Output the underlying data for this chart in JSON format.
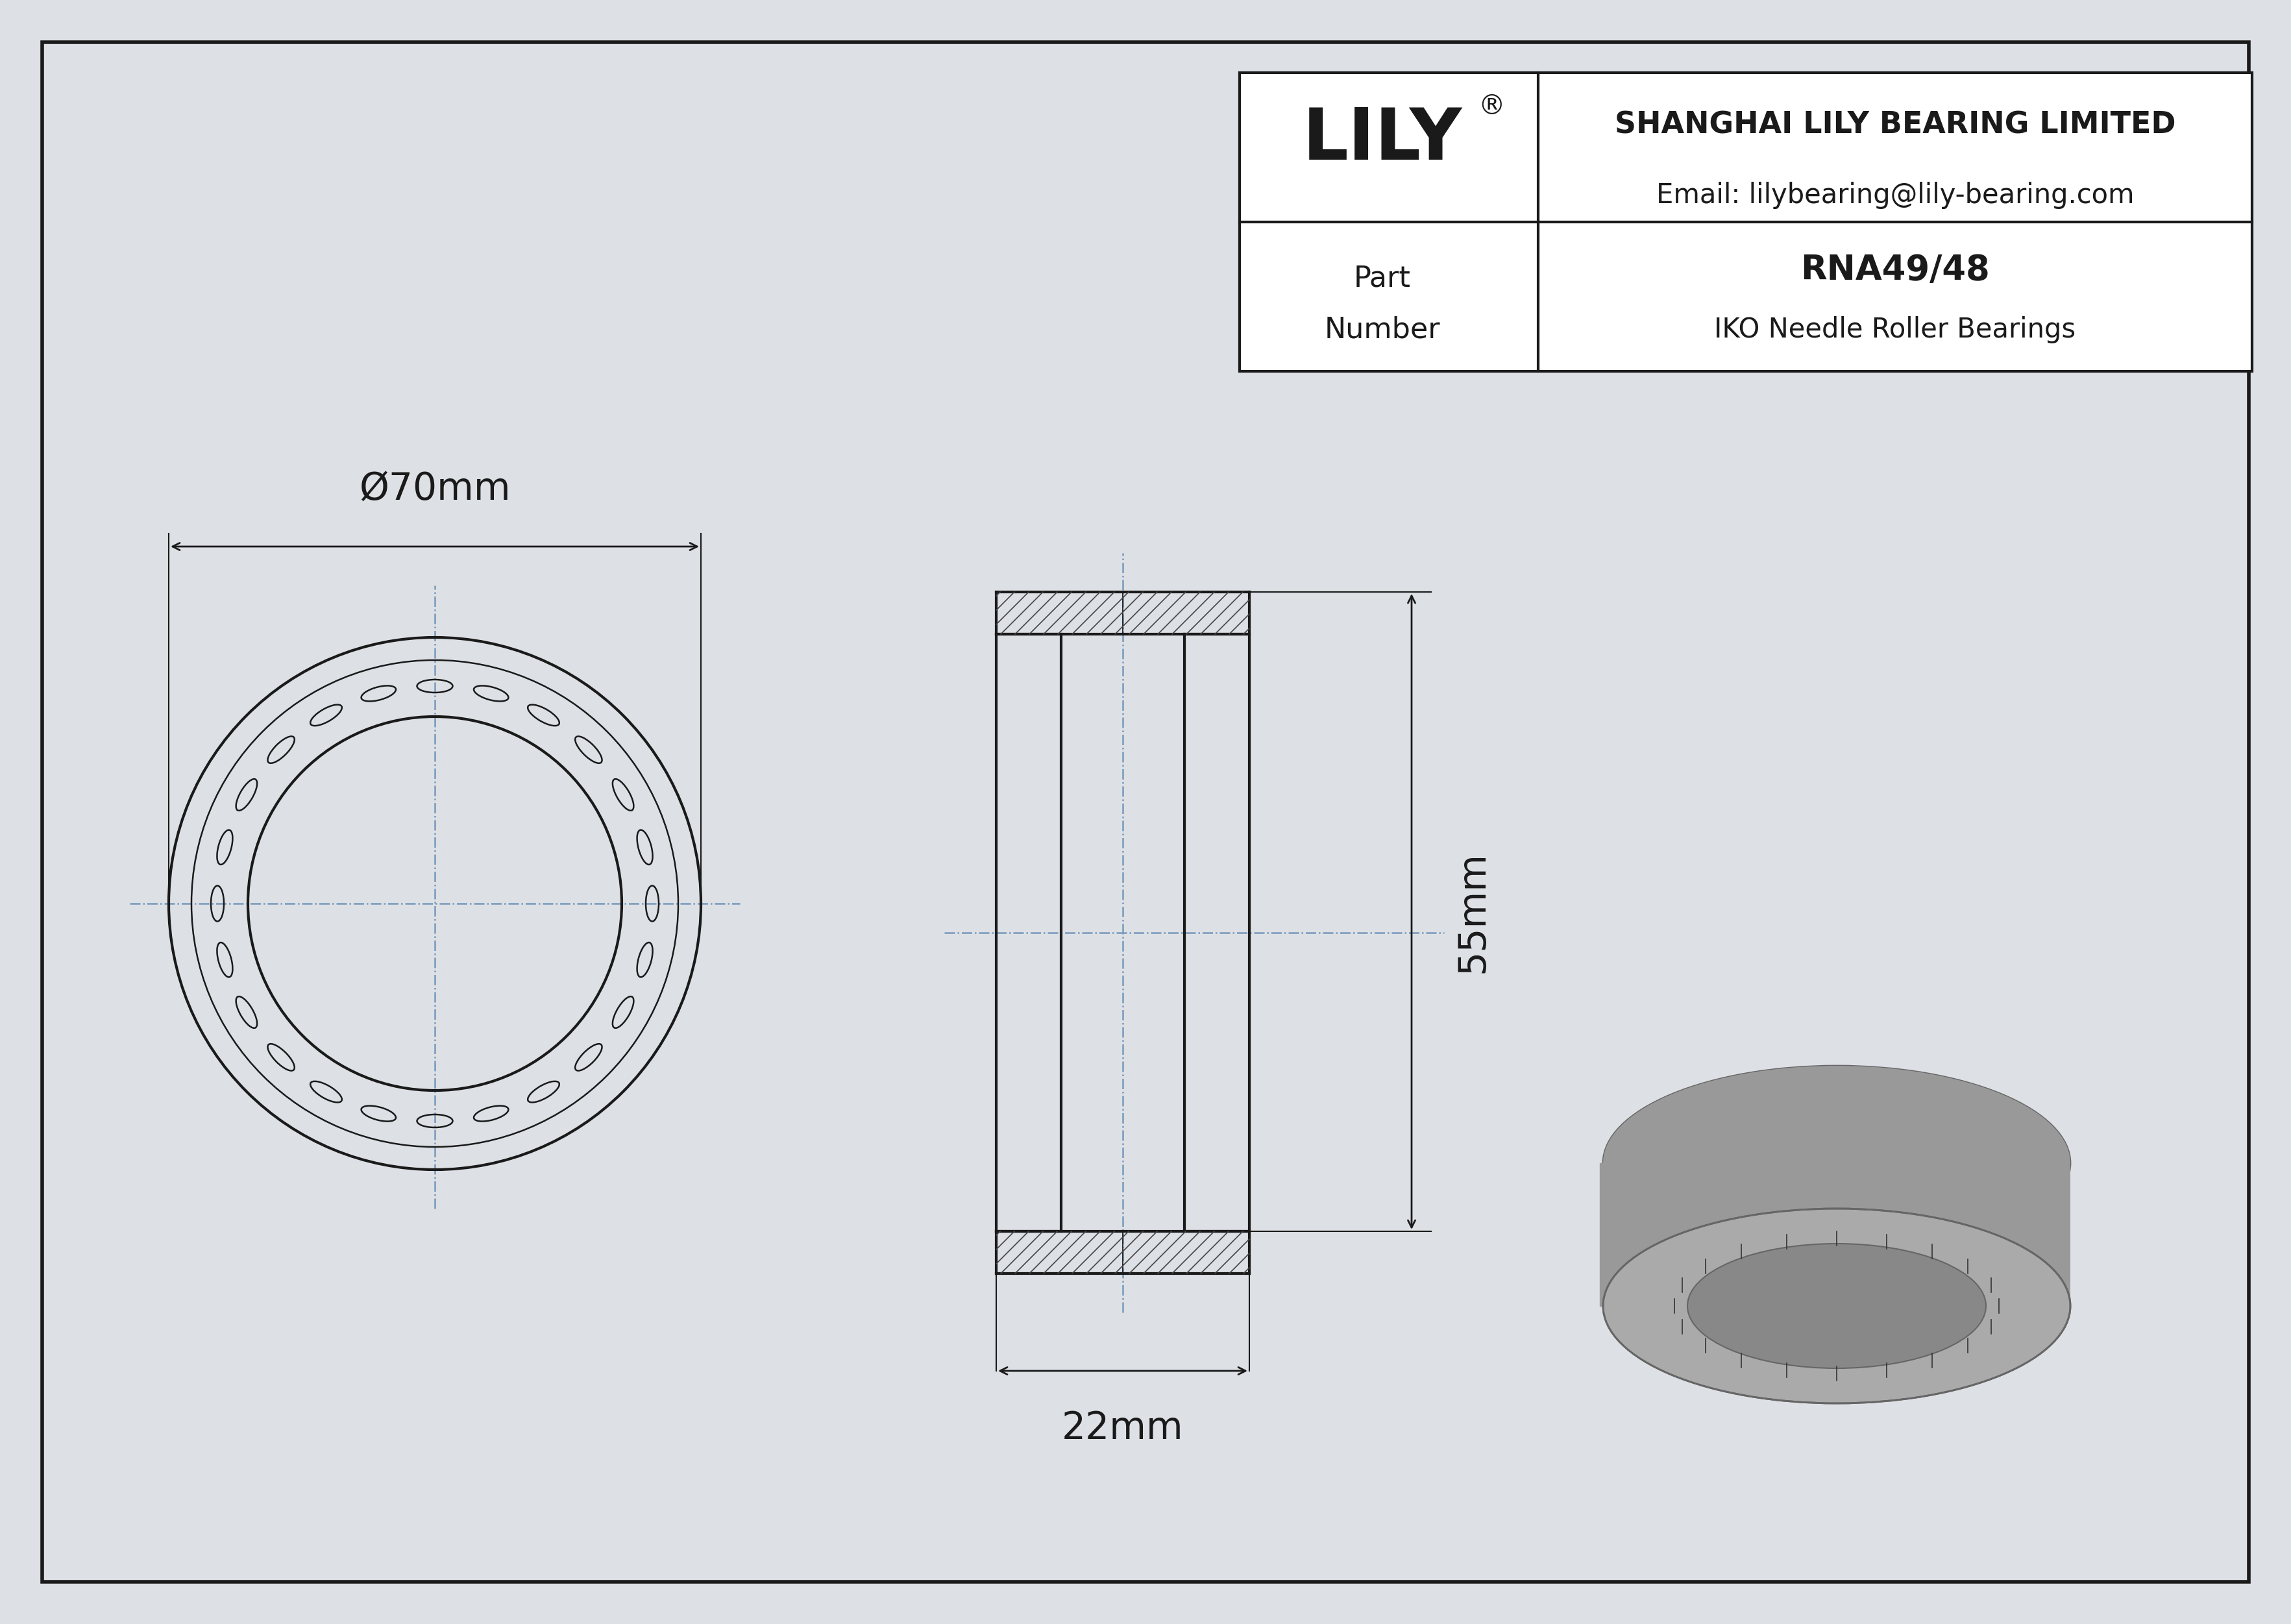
{
  "bg_color": "#dde0e5",
  "page_bg": "#dde0e5",
  "line_color": "#1a1a1a",
  "part_number": "RNA49/48",
  "bearing_type": "IKO Needle Roller Bearings",
  "company": "SHANGHAI LILY BEARING LIMITED",
  "email": "Email: lilybearing@lily-bearing.com",
  "diameter_label": "Ø70mm",
  "width_label": "22mm",
  "height_label": "55mm",
  "lily_text": "LILY",
  "part_label": "Part",
  "number_label": "Number"
}
